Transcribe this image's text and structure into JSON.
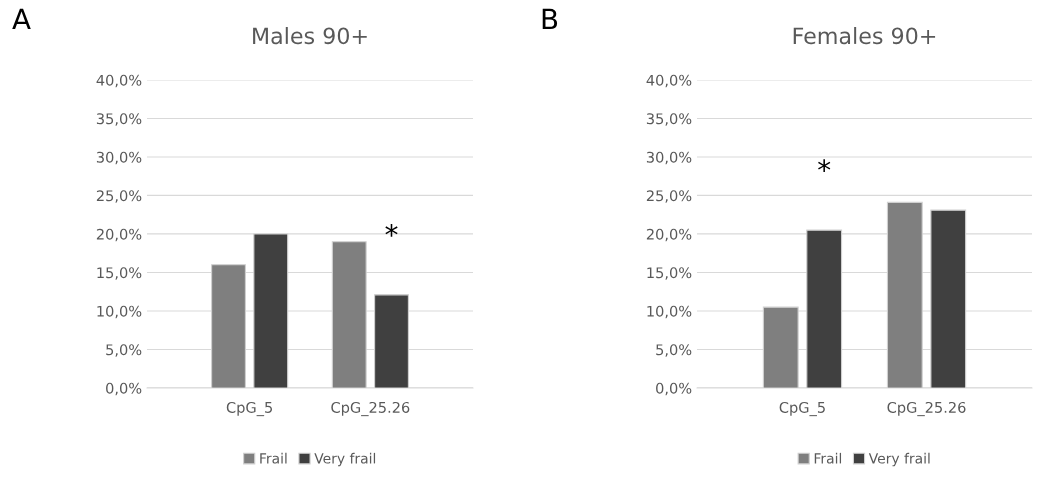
{
  "chart_data": [
    {
      "type": "bar",
      "title": "Males 90+",
      "categories": [
        "CpG_5",
        "CpG_25.26"
      ],
      "series": [
        {
          "name": "Frail",
          "color": "#7f7f7f",
          "values": [
            16.0,
            19.0
          ]
        },
        {
          "name": "Very frail",
          "color": "#404040",
          "values": [
            20.0,
            12.1
          ]
        }
      ],
      "ylim": [
        0,
        40
      ],
      "yticks": [
        {
          "value": 0,
          "label": "0,0%"
        },
        {
          "value": 5,
          "label": "5,0%"
        },
        {
          "value": 10,
          "label": "10,0%"
        },
        {
          "value": 15,
          "label": "15,0%"
        },
        {
          "value": 20,
          "label": "20,0%"
        },
        {
          "value": 25,
          "label": "25,0%"
        },
        {
          "value": 30,
          "label": "30,0%"
        },
        {
          "value": 35,
          "label": "35,0%"
        },
        {
          "value": 40,
          "label": "40,0%"
        }
      ],
      "grid": "y",
      "legend": "bottom",
      "annotations": [
        "A",
        {
          "text": "*",
          "x": "CpG_25.26",
          "y": 12.1
        }
      ]
    },
    {
      "type": "bar",
      "title": "Females 90+",
      "categories": [
        "CpG_5",
        "CpG_25.26"
      ],
      "series": [
        {
          "name": "Frail",
          "color": "#7f7f7f",
          "values": [
            10.5,
            24.1
          ]
        },
        {
          "name": "Very frail",
          "color": "#404040",
          "values": [
            20.5,
            23.1
          ]
        }
      ],
      "ylim": [
        0,
        40
      ],
      "yticks": [
        {
          "value": 0,
          "label": "0,0%"
        },
        {
          "value": 5,
          "label": "5,0%"
        },
        {
          "value": 10,
          "label": "10,0%"
        },
        {
          "value": 15,
          "label": "15,0%"
        },
        {
          "value": 20,
          "label": "20,0%"
        },
        {
          "value": 25,
          "label": "25,0%"
        },
        {
          "value": 30,
          "label": "30,0%"
        },
        {
          "value": 35,
          "label": "35,0%"
        },
        {
          "value": 40,
          "label": "40,0%"
        }
      ],
      "grid": "y",
      "legend": "bottom",
      "annotations": [
        "B",
        {
          "text": "*",
          "x": "CpG_5",
          "y": 20.5
        }
      ]
    }
  ]
}
